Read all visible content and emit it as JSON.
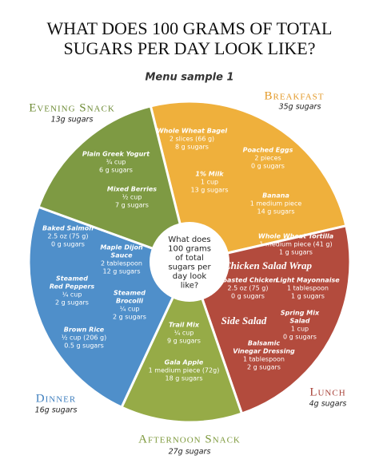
{
  "title_lines": [
    "WHAT DOES 100 GRAMS OF TOTAL",
    "SUGARS PER DAY LOOK LIKE?"
  ],
  "subtitle": "Menu sample 1",
  "center_text": [
    "What does",
    "100 grams",
    "of total",
    "sugars per",
    "day look",
    "like?"
  ],
  "meals": [
    {
      "name": "Breakfast",
      "sugars": "35g sugars",
      "color": "#efb03c",
      "label_color": "#e39a2a",
      "items": [
        {
          "name": [
            "Whole Wheat Bagel"
          ],
          "details": [
            "2 slices (66 g)",
            "8 g sugars"
          ]
        },
        {
          "name": [
            "Poached Eggs"
          ],
          "details": [
            "2 pieces",
            "0 g sugars"
          ]
        },
        {
          "name": [
            "1% Milk"
          ],
          "details": [
            "1 cup",
            "13 g sugars"
          ]
        },
        {
          "name": [
            "Banana"
          ],
          "details": [
            "1 medium piece",
            "14 g sugars"
          ]
        }
      ],
      "headings": []
    },
    {
      "name": "Lunch",
      "sugars": "4g sugars",
      "color": "#b34b3d",
      "label_color": "#a9433a",
      "items": [
        {
          "name": [
            "Whole Wheat Tortilla"
          ],
          "details": [
            "1 medium piece (41 g)",
            "1 g sugars"
          ]
        },
        {
          "name": [
            "Roasted Chicken"
          ],
          "details": [
            "2.5 oz (75 g)",
            "0 g sugars"
          ]
        },
        {
          "name": [
            "Light Mayonnaise"
          ],
          "details": [
            "1 tablespoon",
            "1 g sugars"
          ]
        },
        {
          "name": [
            "Spring Mix",
            "Salad"
          ],
          "details": [
            "1 cup",
            "0 g sugars"
          ]
        },
        {
          "name": [
            "Balsamic",
            "Vinegar Dressing"
          ],
          "details": [
            "1 tablespoon",
            "2 g sugars"
          ]
        }
      ],
      "headings": [
        "Chicken Salad Wrap",
        "Side Salad"
      ]
    },
    {
      "name": "Afternoon Snack",
      "sugars": "27g sugars",
      "color": "#96ab47",
      "label_color": "#7f9a3e",
      "items": [
        {
          "name": [
            "Trail Mix"
          ],
          "details": [
            "¼ cup",
            "9 g sugars"
          ]
        },
        {
          "name": [
            "Gala Apple"
          ],
          "details": [
            "1 medium piece (72g)",
            "18 g sugars"
          ]
        }
      ],
      "headings": []
    },
    {
      "name": "Dinner",
      "sugars": "16g sugars",
      "color": "#4f8fca",
      "label_color": "#3f7fbe",
      "items": [
        {
          "name": [
            "Baked Salmon"
          ],
          "details": [
            "2.5 oz (75 g)",
            "0 g sugars"
          ]
        },
        {
          "name": [
            "Maple Dijon",
            "Sauce"
          ],
          "details": [
            "2 tablespoon",
            "12 g sugars"
          ]
        },
        {
          "name": [
            "Steamed",
            "Red Peppers"
          ],
          "details": [
            "¼ cup",
            "2 g sugars"
          ]
        },
        {
          "name": [
            "Steamed",
            "Brocolli"
          ],
          "details": [
            "¼ cup",
            "2 g sugars"
          ]
        },
        {
          "name": [
            "Brown Rice"
          ],
          "details": [
            "½ cup (206 g)",
            "0.5 g sugars"
          ]
        }
      ],
      "headings": []
    },
    {
      "name": "Evening Snack",
      "sugars": "13g sugars",
      "color": "#7e9a43",
      "label_color": "#6f8c37",
      "items": [
        {
          "name": [
            "Plain Greek Yogurt"
          ],
          "details": [
            "¾ cup",
            "6 g sugars"
          ]
        },
        {
          "name": [
            "Mixed Berries"
          ],
          "details": [
            "½ cup",
            "7 g sugars"
          ]
        }
      ],
      "headings": []
    }
  ]
}
